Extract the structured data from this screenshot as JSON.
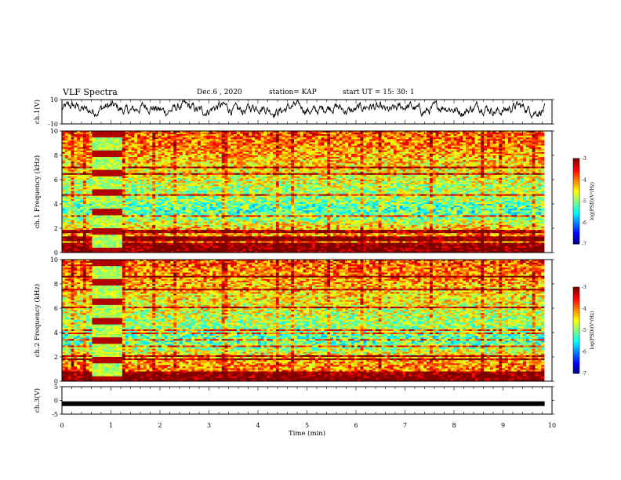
{
  "header": {
    "title": "VLF Spectra",
    "date": "Dec.6 , 2020",
    "station": "station= KAP",
    "start": "start  UT =   15: 30: 1"
  },
  "chart_data": [
    {
      "type": "line",
      "panel": "ch1-waveform",
      "ylabel": "ch.1(V)",
      "ylim": [
        -10,
        10
      ],
      "yticks": [
        "10",
        "-10"
      ],
      "x_range": [
        0,
        9.85
      ],
      "summary_level": 2.5,
      "amplitude": 4
    },
    {
      "type": "heatmap",
      "panel": "ch1-spectrogram",
      "ylabel": "ch.1 Frequency (kHz)",
      "ylim": [
        0,
        10
      ],
      "yticks": [
        "0",
        "2",
        "4",
        "6",
        "8",
        "10"
      ],
      "x_range": [
        0,
        9.85
      ],
      "burst_interval_min": [
        0.6,
        1.2
      ],
      "colorbar": {
        "label": "log(PSD)(V²/Hz)",
        "ticks": [
          "-3",
          "-4",
          "-5",
          "-6",
          "-7"
        ],
        "range": [
          -7,
          -3
        ]
      }
    },
    {
      "type": "heatmap",
      "panel": "ch2-spectrogram",
      "ylabel": "ch.2 Frequency (kHz)",
      "ylim": [
        0,
        10
      ],
      "yticks": [
        "0",
        "2",
        "4",
        "6",
        "8",
        "10"
      ],
      "x_range": [
        0,
        9.85
      ],
      "burst_interval_min": [
        0.6,
        1.2
      ],
      "colorbar": {
        "label": "log(PSD)(V²/Hz)",
        "ticks": [
          "-3",
          "-4",
          "-5",
          "-6",
          "-7"
        ],
        "range": [
          -7,
          -3
        ]
      }
    },
    {
      "type": "line",
      "panel": "ch3-waveform",
      "ylabel": "ch.3(V)",
      "ylim": [
        -5,
        5
      ],
      "yticks": [
        "5",
        "0",
        "-5"
      ],
      "x_range": [
        0,
        9.85
      ],
      "level": -1.2,
      "xlabel": "Time (min)",
      "xticks": [
        "0",
        "1",
        "2",
        "3",
        "4",
        "5",
        "6",
        "7",
        "8",
        "9",
        "10"
      ],
      "xlim": [
        0,
        10
      ]
    }
  ]
}
